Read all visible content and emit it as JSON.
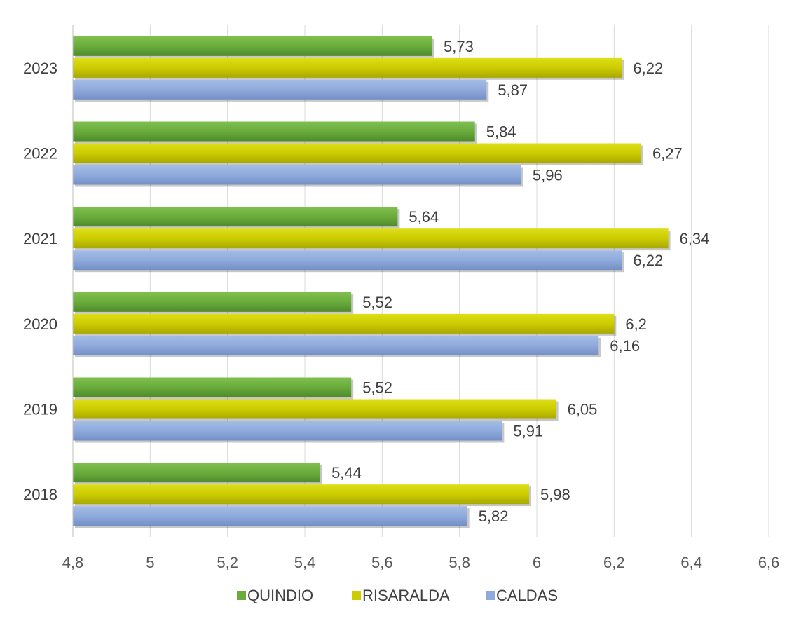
{
  "chart_data": {
    "type": "bar",
    "orientation": "horizontal",
    "categories": [
      "2018",
      "2019",
      "2020",
      "2021",
      "2022",
      "2023"
    ],
    "series": [
      {
        "name": "QUINDIO",
        "color": "#6aac3c",
        "values": [
          5.44,
          5.52,
          5.52,
          5.64,
          5.84,
          5.73
        ],
        "labels": [
          "5,44",
          "5,52",
          "5,52",
          "5,64",
          "5,84",
          "5,73"
        ]
      },
      {
        "name": "RISARALDA",
        "color": "#cccc00",
        "values": [
          5.98,
          6.05,
          6.2,
          6.34,
          6.27,
          6.22
        ],
        "labels": [
          "5,98",
          "6,05",
          "6,2",
          "6,34",
          "6,27",
          "6,22"
        ]
      },
      {
        "name": "CALDAS",
        "color": "#8faadc",
        "values": [
          5.82,
          5.91,
          6.16,
          6.22,
          5.96,
          5.87
        ],
        "labels": [
          "5,82",
          "5,91",
          "6,16",
          "6,22",
          "5,96",
          "5,87"
        ]
      }
    ],
    "xlim": [
      4.8,
      6.6
    ],
    "x_ticks": [
      "4,8",
      "5",
      "5,2",
      "5,4",
      "5,6",
      "5,8",
      "6",
      "6,2",
      "6,4",
      "6,6"
    ],
    "grid": true,
    "legend_position": "bottom",
    "title": "",
    "xlabel": "",
    "ylabel": ""
  }
}
